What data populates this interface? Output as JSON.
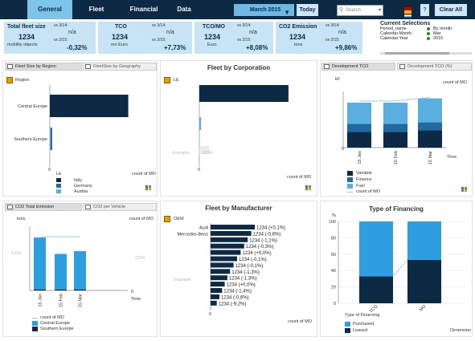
{
  "tabs": [
    "General",
    "Fleet",
    "Financial",
    "Data"
  ],
  "period": {
    "value": "March 2015"
  },
  "today_label": "Today",
  "search": {
    "placeholder": "Search"
  },
  "help_label": "?",
  "clear_label": "Clear All",
  "kpis": [
    {
      "name": "Total fleet size",
      "value": "1234",
      "unit": "mobility objects",
      "cmp1": "vs 3/14:",
      "na1": "n/a",
      "cmp2": "vs 2/15:",
      "pct": "-0,32%"
    },
    {
      "name": "TCO",
      "value": "1234",
      "unit": "mn Euro",
      "cmp1": "vs 3/14:",
      "na1": "n/a",
      "cmp2": "vs 2/15:",
      "pct": "+7,73%"
    },
    {
      "name": "TCO/MO",
      "value": "1234",
      "unit": "Euro",
      "cmp1": "vs 3/14:",
      "na1": "n/a",
      "cmp2": "vs 2/15:",
      "pct": "+8,08%"
    },
    {
      "name": "CO2 Emission",
      "value": "1234",
      "unit": "tons",
      "cmp1": "vs 3/14:",
      "na1": "n/a",
      "cmp2": "vs 2/15:",
      "pct": "+9,86%"
    }
  ],
  "current_selections": {
    "title": "Current Selections",
    "rows": [
      {
        "field": "Period_name",
        "value": "By month"
      },
      {
        "field": "Calendar.Month",
        "value": "Mar"
      },
      {
        "field": "Calendar.Year",
        "value": "2015"
      }
    ]
  },
  "panels": {
    "fleet_size": {
      "tab1": "Fleet Size by Region",
      "tab2": "FleetSize by Geography",
      "breadcrumb": "Region",
      "xlabel": "count of MO",
      "legend_title": "LE",
      "legend": [
        "Italy",
        "Germany",
        "Austria"
      ],
      "axis_zero": "0"
    },
    "fleet_corp": {
      "title": "Fleet by Corporation",
      "breadcrumb": "LE",
      "faded_label": "Example",
      "faded_value": "1234",
      "xlabel": "count of MO",
      "axis_zero": "0"
    },
    "dev_tco": {
      "tab1": "Development TCO",
      "tab2": "Development TCO (%)",
      "yunit": "k€",
      "ylabel2": "count of MO",
      "xlabel": "Time",
      "axis_zero": "0",
      "legend": [
        "Variable",
        "Finance",
        "Fuel",
        "count of MO"
      ]
    },
    "co2": {
      "tab1": "CO2 Total Emission",
      "tab2": "CO2 per Vehicle",
      "yunit": "tons",
      "ylabel2": "count of MO",
      "faded_left": "1234",
      "faded_right": "1234",
      "xlabel": "Time",
      "legend": [
        "count of MO",
        "Central Europe",
        "Southern Europe"
      ],
      "axis_zero": "0"
    },
    "manufacturer": {
      "title": "Fleet by Manufacturer",
      "breadcrumb": "OEM",
      "faded_label": "Example",
      "xlabel": "count of MO",
      "axis_zero": "0"
    },
    "financing": {
      "title": "Type of Financing",
      "yunit": "%",
      "xlabel": "Dimension",
      "legend_title": "Type of Financing",
      "legend": [
        "Purchased",
        "Leased"
      ]
    }
  },
  "chart_data": [
    {
      "type": "bar",
      "orientation": "horizontal",
      "title": "",
      "categories": [
        "Central Europe",
        "Southern Europe"
      ],
      "series": [
        {
          "name": "Austria",
          "values": [
            0,
            1
          ]
        },
        {
          "name": "Germany",
          "values": [
            0,
            2
          ]
        },
        {
          "name": "Italy",
          "values": [
            100,
            0
          ]
        }
      ],
      "xlabel": "count of MO",
      "ylabel": "Region"
    },
    {
      "type": "bar",
      "orientation": "horizontal",
      "title": "Fleet by Corporation",
      "categories": [
        "",
        ""
      ],
      "values": [
        100,
        2
      ],
      "xlabel": "count of MO",
      "ylabel": "LE"
    },
    {
      "type": "bar",
      "stacked": true,
      "title": "Development TCO",
      "categories": [
        "15 Jan",
        "15 Feb",
        "15 Mar"
      ],
      "series": [
        {
          "name": "Variable",
          "values": [
            30,
            30,
            33
          ]
        },
        {
          "name": "Finance",
          "values": [
            15,
            15,
            15
          ]
        },
        {
          "name": "Fuel",
          "values": [
            40,
            40,
            45
          ]
        }
      ],
      "line": {
        "name": "count of MO",
        "values": [
          88,
          88,
          95
        ]
      },
      "xlabel": "Time",
      "ylabel": "k€",
      "legend": "bottom"
    },
    {
      "type": "bar",
      "stacked": true,
      "title": "CO2 Total Emission",
      "categories": [
        "15 Jan",
        "15 Feb",
        "15 Mar"
      ],
      "series": [
        {
          "name": "Southern Europe",
          "values": [
            2,
            2,
            2
          ]
        },
        {
          "name": "Central Europe",
          "values": [
            95,
            65,
            70
          ]
        }
      ],
      "line": {
        "name": "count of MO",
        "values": [
          100,
          100,
          100
        ]
      },
      "xlabel": "Time",
      "ylabel": "tons",
      "legend": "bottom"
    },
    {
      "type": "bar",
      "orientation": "horizontal",
      "title": "Fleet by Manufacturer",
      "categories": [
        "Audi",
        "Mercedes-Benz",
        "",
        "",
        "",
        "",
        "",
        "",
        "",
        "",
        "",
        "",
        ""
      ],
      "values": [
        100,
        92,
        84,
        76,
        68,
        60,
        52,
        44,
        38,
        32,
        26,
        20,
        14
      ],
      "data_labels": [
        "1234 (+0,1%)",
        "1234 (-0,8%)",
        "1234 (-1,1%)",
        "1234 (-0,3%)",
        "1234 (+0,0%)",
        "1234 (-0,1%)",
        "1234 (-0,1%)",
        "1234 (-1,3%)",
        "1234 (-1,3%)",
        "1234 (+0,0%)",
        "1234 (-1,4%)",
        "1234 (-0,6%)",
        "1234 (-9,2%)"
      ],
      "xlabel": "count of MO",
      "ylabel": "OEM"
    },
    {
      "type": "bar",
      "stacked": true,
      "title": "Type of Financing",
      "categories": [
        "TCO",
        "MO"
      ],
      "series": [
        {
          "name": "Leased",
          "values": [
            33,
            53
          ]
        },
        {
          "name": "Purchased",
          "values": [
            67,
            47
          ]
        }
      ],
      "y_ticks": [
        0,
        20,
        40,
        60,
        80,
        100
      ],
      "ylim": [
        0,
        100
      ],
      "xlabel": "Dimension",
      "ylabel": "%",
      "legend": "bottom-left"
    }
  ]
}
